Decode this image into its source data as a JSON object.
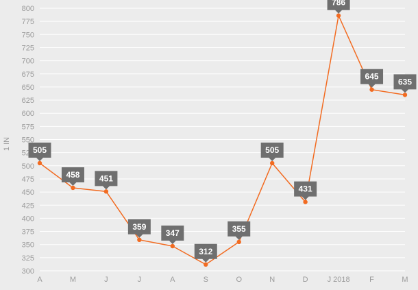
{
  "chart_data": {
    "type": "line",
    "title": "",
    "xlabel": "",
    "ylabel": "1 IN",
    "categories": [
      "A",
      "M",
      "J",
      "J",
      "A",
      "S",
      "O",
      "N",
      "D",
      "J 2018",
      "F",
      "M"
    ],
    "series": [
      {
        "values": [
          505,
          458,
          451,
          359,
          347,
          312,
          355,
          505,
          431,
          786,
          645,
          635
        ],
        "color": "#f26b21"
      }
    ],
    "ylim": [
      300,
      800
    ],
    "ytick_step": 25,
    "grid": true,
    "legend": "none",
    "data_labels": true,
    "data_label_color": "#6f6f6f",
    "background": "#ececec"
  }
}
